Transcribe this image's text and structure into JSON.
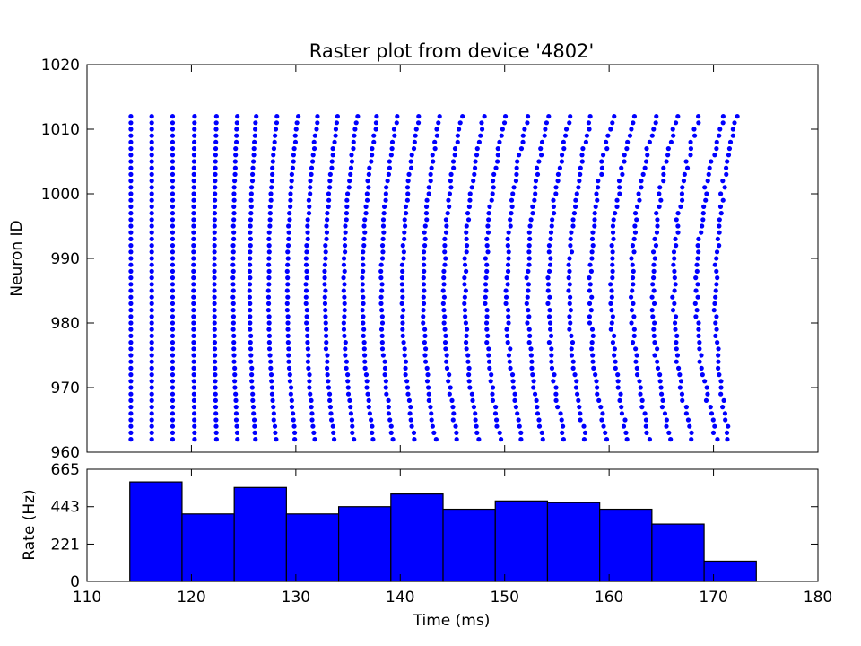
{
  "chart_data": [
    {
      "type": "scatter",
      "title": "Raster plot from device '4802'",
      "xlabel": "",
      "ylabel": "Neuron ID",
      "xlim": [
        110,
        180
      ],
      "ylim": [
        960,
        1020
      ],
      "yticks": [
        "960",
        "970",
        "980",
        "990",
        "1000",
        "1010",
        "1020"
      ],
      "marker_color": "#0000ff",
      "neuron_ids": {
        "first": 962,
        "last": 1012
      },
      "spike_waves": [
        {
          "center_id": 987,
          "center_time": 114.2,
          "end_tilt": 0.0
        },
        {
          "center_id": 987,
          "center_time": 116.2,
          "end_tilt": 0.0
        },
        {
          "center_id": 987,
          "center_time": 118.2,
          "end_tilt": 0.0
        },
        {
          "center_id": 987,
          "center_time": 120.2,
          "end_tilt": 0.1
        },
        {
          "center_id": 987,
          "center_time": 122.2,
          "end_tilt": 0.2
        },
        {
          "center_id": 987,
          "center_time": 124.0,
          "end_tilt": 0.4
        },
        {
          "center_id": 986,
          "center_time": 125.6,
          "end_tilt": 0.6
        },
        {
          "center_id": 986,
          "center_time": 127.4,
          "end_tilt": 0.8
        },
        {
          "center_id": 985,
          "center_time": 129.2,
          "end_tilt": 1.0
        },
        {
          "center_id": 985,
          "center_time": 131.0,
          "end_tilt": 1.1
        },
        {
          "center_id": 985,
          "center_time": 132.8,
          "end_tilt": 1.2
        },
        {
          "center_id": 985,
          "center_time": 134.6,
          "end_tilt": 1.3
        },
        {
          "center_id": 985,
          "center_time": 136.4,
          "end_tilt": 1.4
        },
        {
          "center_id": 985,
          "center_time": 138.2,
          "end_tilt": 1.5
        },
        {
          "center_id": 985,
          "center_time": 140.2,
          "end_tilt": 1.6
        },
        {
          "center_id": 985,
          "center_time": 142.2,
          "end_tilt": 1.6
        },
        {
          "center_id": 985,
          "center_time": 144.2,
          "end_tilt": 1.7
        },
        {
          "center_id": 985,
          "center_time": 146.2,
          "end_tilt": 1.8
        },
        {
          "center_id": 985,
          "center_time": 148.2,
          "end_tilt": 1.9
        },
        {
          "center_id": 985,
          "center_time": 150.2,
          "end_tilt": 2.0
        },
        {
          "center_id": 985,
          "center_time": 152.2,
          "end_tilt": 2.0
        },
        {
          "center_id": 985,
          "center_time": 154.2,
          "end_tilt": 2.1
        },
        {
          "center_id": 985,
          "center_time": 156.2,
          "end_tilt": 2.1
        },
        {
          "center_id": 985,
          "center_time": 158.2,
          "end_tilt": 2.2
        },
        {
          "center_id": 985,
          "center_time": 160.2,
          "end_tilt": 2.2
        },
        {
          "center_id": 985,
          "center_time": 162.2,
          "end_tilt": 2.3
        },
        {
          "center_id": 985,
          "center_time": 164.2,
          "end_tilt": 2.3
        },
        {
          "center_id": 985,
          "center_time": 166.2,
          "end_tilt": 2.4
        },
        {
          "center_id": 985,
          "center_time": 168.4,
          "end_tilt": 2.6
        },
        {
          "center_id": 984,
          "center_time": 170.2,
          "end_tilt": 2.0
        }
      ]
    },
    {
      "type": "bar",
      "xlabel": "Time (ms)",
      "ylabel": "Rate (Hz)",
      "xlim": [
        110,
        180
      ],
      "ylim": [
        0,
        665
      ],
      "yticks": [
        "0",
        "221",
        "443",
        "665"
      ],
      "xticks": [
        "110",
        "120",
        "130",
        "140",
        "150",
        "160",
        "170",
        "180"
      ],
      "bar_color": "#0000ff",
      "bin_edges": [
        114.1,
        119.1,
        124.1,
        129.1,
        134.1,
        139.1,
        144.1,
        149.1,
        154.1,
        159.1,
        164.1,
        169.1,
        174.1
      ],
      "values": [
        590,
        400,
        557,
        400,
        443,
        518,
        428,
        477,
        467,
        428,
        340,
        120
      ]
    }
  ]
}
